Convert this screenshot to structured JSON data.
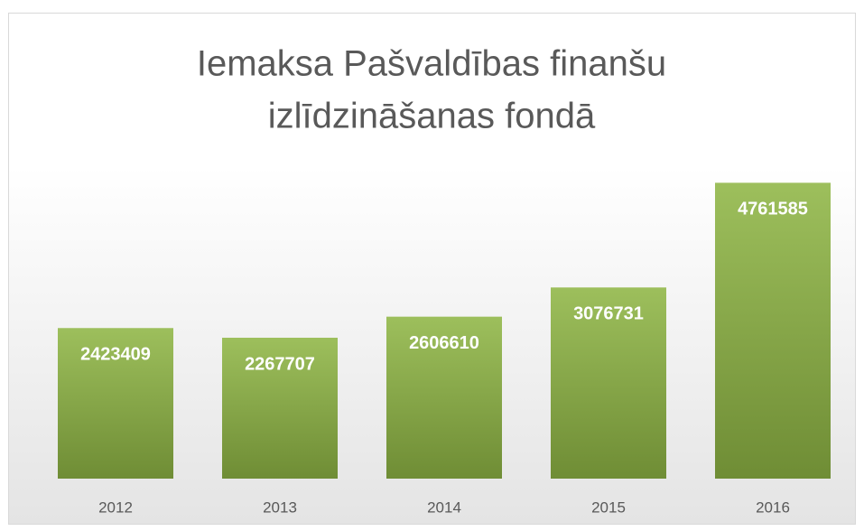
{
  "chart_data": {
    "type": "bar",
    "title": [
      "Iemaksa Pašvaldības finanšu",
      "izlīdzināšanas fondā"
    ],
    "categories": [
      "2012",
      "2013",
      "2014",
      "2015",
      "2016"
    ],
    "values": [
      2423409,
      2267707,
      2606610,
      3076731,
      4761585
    ],
    "color": "#8fb04e",
    "ylim": [
      0,
      5000000
    ]
  }
}
